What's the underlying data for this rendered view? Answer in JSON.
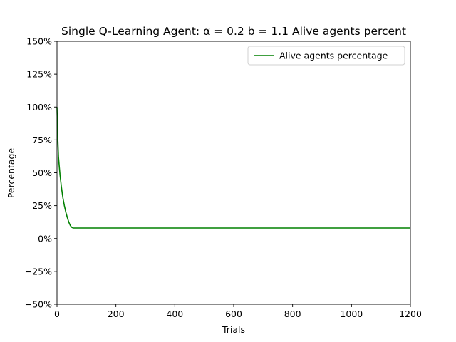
{
  "chart_data": {
    "type": "line",
    "title": "Single Q-Learning Agent: α = 0.2 b = 1.1 Alive agents percent",
    "xlabel": "Trials",
    "ylabel": "Percentage",
    "xlim": [
      0,
      1200
    ],
    "ylim": [
      -50,
      150
    ],
    "x_ticks": [
      0,
      200,
      400,
      600,
      800,
      1000,
      1200
    ],
    "y_ticks": [
      -50,
      -25,
      0,
      25,
      50,
      75,
      100,
      125,
      150
    ],
    "y_tick_format": "percent",
    "grid": false,
    "legend_position": "top-right",
    "series": [
      {
        "name": "Alive agents percentage",
        "color": "#008000",
        "x": [
          0,
          2,
          5,
          8,
          10,
          15,
          20,
          25,
          30,
          35,
          40,
          45,
          50,
          55,
          100,
          200,
          400,
          600,
          800,
          1000,
          1200
        ],
        "y": [
          100,
          80,
          62,
          54,
          49,
          39,
          31,
          25,
          20,
          16,
          12.5,
          10,
          8.5,
          8,
          8,
          8,
          8,
          8,
          8,
          8,
          8
        ]
      }
    ]
  }
}
